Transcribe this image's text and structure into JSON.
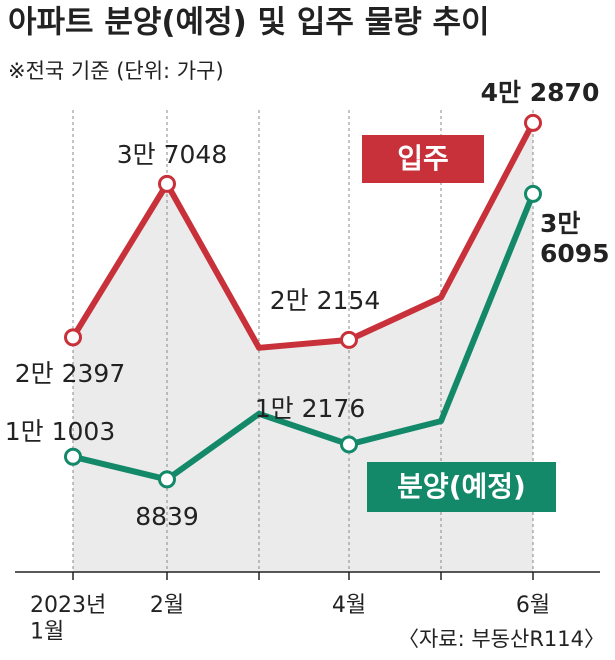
{
  "chart_data": {
    "type": "line",
    "title": "아파트 분양(예정) 및 입주 물량 추이",
    "subtitle": "※전국 기준 (단위: 가구)",
    "source": "〈자료: 부동산R114〉",
    "categories": [
      "2023년 1월",
      "2월",
      null,
      "4월",
      null,
      "6월"
    ],
    "series": [
      {
        "name": "입주",
        "color": "#c8313a",
        "values": [
          22397,
          37048,
          21400,
          22154,
          26200,
          42870
        ],
        "value_labels": [
          "2만 2397",
          "3만 7048",
          null,
          "2만 2154",
          null,
          "4만 2870"
        ]
      },
      {
        "name": "분양(예정)",
        "color": "#13896a",
        "values": [
          11003,
          8839,
          15100,
          12176,
          14400,
          36095
        ],
        "value_labels": [
          "1만 1003",
          "8839",
          null,
          "1만 2176",
          null,
          "3만 6095"
        ]
      }
    ],
    "ylim": [
      0,
      54600
    ],
    "area_color": "#ebebeb"
  }
}
